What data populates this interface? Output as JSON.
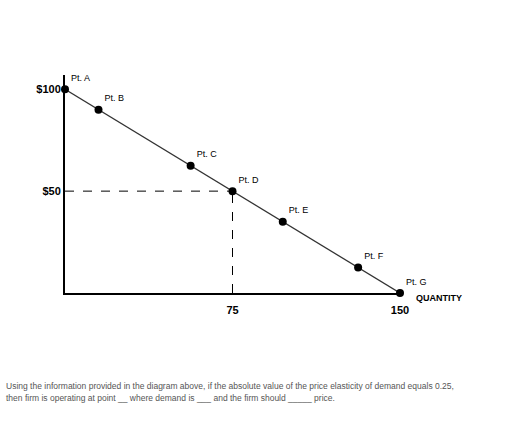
{
  "chart_data": {
    "type": "line",
    "x": [
      0,
      15,
      56.25,
      75,
      97.5,
      131.25,
      150
    ],
    "values": [
      100,
      90,
      62.5,
      50,
      35,
      12.5,
      0
    ],
    "point_labels": [
      "Pt. A",
      "Pt. B",
      "Pt. C",
      "Pt. D",
      "Pt. E",
      "Pt. F",
      "Pt. G"
    ],
    "color": "#333333",
    "marker": "circle",
    "xlabel": "QUANTITY",
    "xlim": [
      0,
      150
    ],
    "ylim": [
      0,
      107
    ],
    "xticks": [
      75,
      150
    ],
    "yticks": [
      {
        "value": 50,
        "label": "$50"
      },
      {
        "value": 100,
        "label": "$100"
      }
    ],
    "guide_point": {
      "x": 75,
      "y": 50,
      "line_style": "dashed"
    },
    "grid": false
  },
  "question": [
    "Using the information provided in the diagram above, if the absolute value of the price elasticity of demand equals 0.25,",
    "then firm is operating at point __ where demand is ___ and the firm should _____ price."
  ]
}
